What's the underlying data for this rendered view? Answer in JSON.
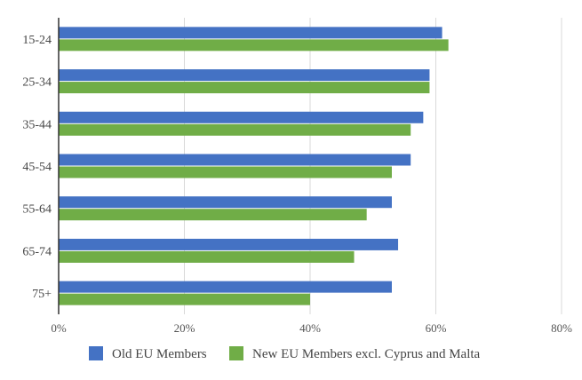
{
  "chart_data": {
    "type": "bar",
    "orientation": "horizontal",
    "categories": [
      "15-24",
      "25-34",
      "35-44",
      "45-54",
      "55-64",
      "65-74",
      "75+"
    ],
    "series": [
      {
        "name": "Old EU Members",
        "color": "#4472c4",
        "values": [
          61,
          59,
          58,
          56,
          53,
          54,
          53
        ]
      },
      {
        "name": "New EU Members excl. Cyprus and Malta",
        "color": "#70ad47",
        "values": [
          62,
          59,
          56,
          53,
          49,
          47,
          40
        ]
      }
    ],
    "xlim": [
      0,
      80
    ],
    "xticks": [
      0,
      20,
      40,
      60,
      80
    ],
    "tick_format": "percent",
    "grid": "vertical",
    "legend_position": "bottom",
    "title": "",
    "xlabel": "",
    "ylabel": ""
  }
}
